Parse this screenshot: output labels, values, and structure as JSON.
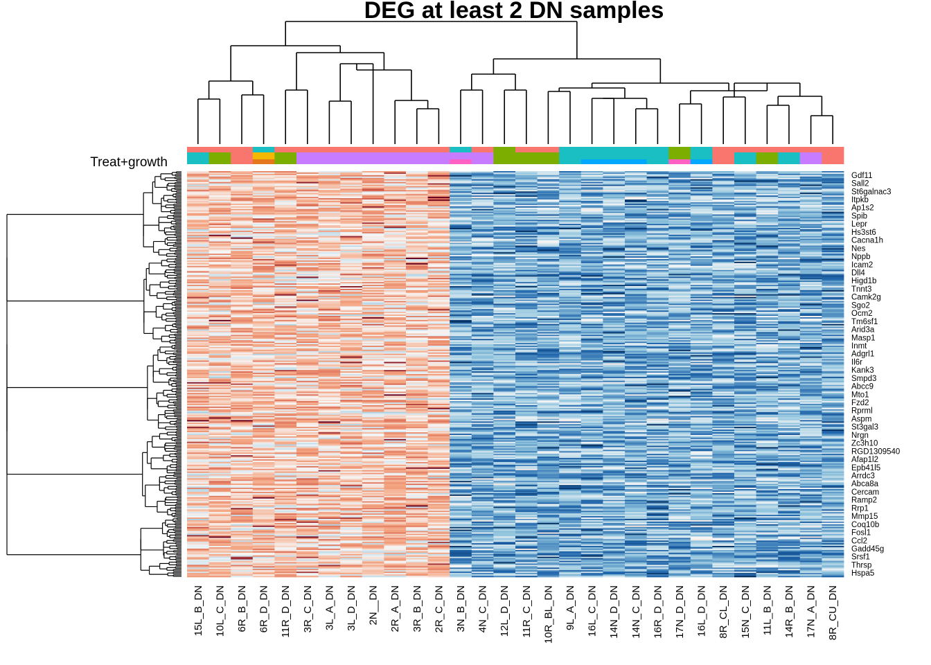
{
  "chart_data": {
    "type": "heatmap",
    "title": "DEG at least 2 DN samples",
    "annotation_track_label": "Treat+growth",
    "columns": [
      "15L_B_DN",
      "10L_C_DN",
      "6R_B_DN",
      "6R_D_DN",
      "11R_D_DN",
      "3R_C_DN",
      "3L_A_DN",
      "3L_D_DN",
      "2N__DN",
      "2R_A_DN",
      "3R_B_DN",
      "2R_C_DN",
      "3N_B_DN",
      "4N_C_DN",
      "12L_D_DN",
      "11R_C_DN",
      "10R_BL_DN",
      "9L_A_DN",
      "16L_C_DN",
      "14N_D_DN",
      "14N_C_DN",
      "16R_D_DN",
      "17N_D_DN",
      "16L_D_DN",
      "8R_CL_DN",
      "15N_C_DN",
      "11L_B_DN",
      "14R_B_DN",
      "17N_A_DN",
      "8R_CU_DN"
    ],
    "column_groups": [
      0,
      0,
      0,
      0,
      0,
      0,
      0,
      0,
      0,
      0,
      0,
      0,
      1,
      1,
      1,
      1,
      1,
      1,
      1,
      1,
      1,
      1,
      1,
      1,
      1,
      1,
      1,
      1,
      1,
      1
    ],
    "annotation_top": [
      "#f8766d",
      "#f8766d",
      "#f8766d",
      "#19bfc3",
      "#f8766d",
      "#f8766d",
      "#f8766d",
      "#f8766d",
      "#f8766d",
      "#f8766d",
      "#f8766d",
      "#f8766d",
      "#19bfc3",
      "#f8766d",
      "#7cae00",
      "#f8766d",
      "#f8766d",
      "#19bfc3",
      "#19bfc3",
      "#19bfc3",
      "#19bfc3",
      "#19bfc3",
      "#7cae00",
      "#19bfc3",
      "#f8766d",
      "#f8766d",
      "#f8766d",
      "#f8766d",
      "#f8766d",
      "#f8766d"
    ],
    "annotation_mid": [
      "#19bfc3",
      "#7cae00",
      "#f8766d",
      "#f5b800",
      "#7cae00",
      "#c77cff",
      "#c77cff",
      "#c77cff",
      "#c77cff",
      "#c77cff",
      "#c77cff",
      "#c77cff",
      "#c77cff",
      "#c77cff",
      "#7cae00",
      "#7cae00",
      "#7cae00",
      "#19bfc3",
      "#19bfc3",
      "#19bfc3",
      "#19bfc3",
      "#19bfc3",
      "#7cae00",
      "#19bfc3",
      "#f8766d",
      "#19bfc3",
      "#7cae00",
      "#19bfc3",
      "#c77cff",
      "#f8766d"
    ],
    "annotation_bottom": [
      "#19bfc3",
      "#7cae00",
      "#f8766d",
      "#e4771c",
      "#7cae00",
      "#c77cff",
      "#c77cff",
      "#c77cff",
      "#c77cff",
      "#c77cff",
      "#c77cff",
      "#c77cff",
      "#ff61c3",
      "#c77cff",
      "#7cae00",
      "#7cae00",
      "#7cae00",
      "#19bfc3",
      "#00a9ff",
      "#00a9ff",
      "#00a9ff",
      "#19bfc3",
      "#ff61c3",
      "#00a9ff",
      "#f8766d",
      "#19bfc3",
      "#7cae00",
      "#19bfc3",
      "#c77cff",
      "#f8766d"
    ],
    "genes": [
      "Gdf11",
      "Sall2",
      "St6galnac3",
      "Itpkb",
      "Ap1s2",
      "Spib",
      "Lepr",
      "Hs3st6",
      "Cacna1h",
      "Nes",
      "Nppb",
      "Icam2",
      "Dll4",
      "Higd1b",
      "Tnnt3",
      "Camk2g",
      "Sgo2",
      "Ocm2",
      "Tm6sf1",
      "Arid3a",
      "Masp1",
      "Inmt",
      "Adgrl1",
      "Il6r",
      "Kank3",
      "Smpd3",
      "Abcc9",
      "Mto1",
      "Fzd2",
      "Rprml",
      "Aspm",
      "St3gal3",
      "Nrgn",
      "Zc3h10",
      "RGD1309540",
      "Afap1l2",
      "Epb41l5",
      "Arrdc3",
      "Abca8a",
      "Cercam",
      "Ramp2",
      "Rrp1",
      "Mmp15",
      "Coq10b",
      "Fosl1",
      "Ccl2",
      "Gadd45g",
      "Srsf1",
      "Thrsp",
      "Hspa5"
    ],
    "n_rows": 300,
    "color_scale": {
      "low": "#053061",
      "mid": "#f7f7f7",
      "high": "#67001f"
    }
  }
}
